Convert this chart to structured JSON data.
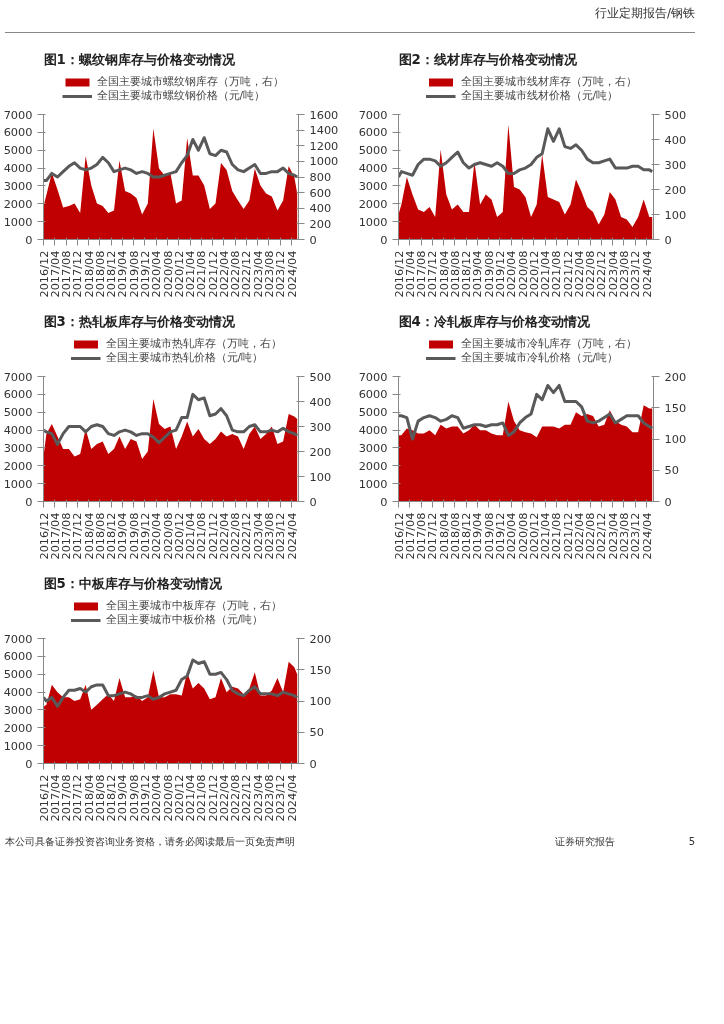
{
  "chart_data": [
    {
      "type": "line",
      "title": "图1：螺纹钢库存与价格变动情况",
      "annotations": [
        "行业定期报告/钢铁",
        "本公司具备证券投资咨询业务资格，请务必阅读最后一页免责声明",
        "证券研究报告",
        "5"
      ],
      "legend": "top",
      "grid": false,
      "xlim": [
        "2016-12",
        "2024-06-15"
      ],
      "ylim": [
        0,
        7000
      ],
      "yticks": [
        0,
        1000,
        2000,
        3000,
        4000,
        5000,
        6000,
        7000
      ],
      "y2lim": [
        0,
        1600
      ],
      "y2ticks": [
        0,
        200,
        400,
        600,
        800,
        1000,
        1200,
        1400,
        1600
      ],
      "xticks": [
        {
          "value": "2016-12",
          "label": "2016/12"
        },
        {
          "value": "2017-04",
          "label": "2017/04"
        },
        {
          "value": "2017-08",
          "label": "2017/08"
        },
        {
          "value": "2017-12",
          "label": "2017/12"
        },
        {
          "value": "2018-04",
          "label": "2018/04"
        },
        {
          "value": "2018-08",
          "label": "2018/08"
        },
        {
          "value": "2018-12",
          "label": "2018/12"
        },
        {
          "value": "2019-04",
          "label": "2019/04"
        },
        {
          "value": "2019-08",
          "label": "2019/08"
        },
        {
          "value": "2019-12",
          "label": "2019/12"
        },
        {
          "value": "2020-04",
          "label": "2020/04"
        },
        {
          "value": "2020-08",
          "label": "2020/08"
        },
        {
          "value": "2020-12",
          "label": "2020/12"
        },
        {
          "value": "2021-04",
          "label": "2021/04"
        },
        {
          "value": "2021-08",
          "label": "2021/08"
        },
        {
          "value": "2021-12",
          "label": "2021/12"
        },
        {
          "value": "2022-04",
          "label": "2022/04"
        },
        {
          "value": "2022-08",
          "label": "2022/08"
        },
        {
          "value": "2022-12",
          "label": "2022/12"
        },
        {
          "value": "2023-04",
          "label": "2023/04"
        },
        {
          "value": "2023-08",
          "label": "2023/08"
        },
        {
          "value": "2023-12",
          "label": "2023/12"
        },
        {
          "value": "2024-04",
          "label": "2024/04"
        }
      ],
      "x": [
        "2016-12",
        "2017-01",
        "2017-03",
        "2017-05",
        "2017-07",
        "2017-09",
        "2017-11",
        "2018-01",
        "2018-03",
        "2018-05",
        "2018-07",
        "2018-09",
        "2018-11",
        "2019-01",
        "2019-03",
        "2019-05",
        "2019-07",
        "2019-09",
        "2019-11",
        "2020-01",
        "2020-03",
        "2020-05",
        "2020-07",
        "2020-09",
        "2020-11",
        "2021-01",
        "2021-03",
        "2021-05",
        "2021-07",
        "2021-09",
        "2021-11",
        "2022-01",
        "2022-03",
        "2022-05",
        "2022-07",
        "2022-09",
        "2022-11",
        "2023-01",
        "2023-03",
        "2023-05",
        "2023-07",
        "2023-09",
        "2023-11",
        "2024-01",
        "2024-03",
        "2024-05",
        "2024-06"
      ],
      "series": [
        {
          "name": "全国主要城市螺纹钢库存（万吨，右）",
          "type": "area",
          "axis": "y2",
          "color": "#c00000",
          "values": [
            430,
            570,
            850,
            640,
            410,
            430,
            460,
            340,
            1070,
            690,
            460,
            430,
            340,
            370,
            1010,
            620,
            590,
            530,
            320,
            460,
            1420,
            910,
            820,
            850,
            460,
            500,
            1300,
            820,
            820,
            690,
            390,
            460,
            980,
            890,
            620,
            500,
            390,
            500,
            910,
            690,
            590,
            550,
            370,
            500,
            940,
            800,
            590
          ]
        },
        {
          "name": "全国主要城市螺纹钢价格（元/吨）",
          "type": "line",
          "color": "#595959",
          "values": [
            3300,
            3300,
            3700,
            3500,
            3800,
            4100,
            4300,
            4000,
            3900,
            4000,
            4200,
            4600,
            4300,
            3800,
            3900,
            4000,
            3900,
            3700,
            3800,
            3700,
            3500,
            3500,
            3600,
            3700,
            3800,
            4300,
            4700,
            5600,
            5000,
            5700,
            4800,
            4700,
            5000,
            4900,
            4200,
            3900,
            3800,
            4000,
            4200,
            3700,
            3700,
            3800,
            3800,
            4000,
            3700,
            3600,
            3500
          ]
        }
      ]
    },
    {
      "type": "line",
      "title": "图2：线材库存与价格变动情况",
      "legend": "top",
      "grid": false,
      "xlim": [
        "2016-12",
        "2024-06-15"
      ],
      "ylim": [
        0,
        7000
      ],
      "yticks": [
        0,
        1000,
        2000,
        3000,
        4000,
        5000,
        6000,
        7000
      ],
      "y2lim": [
        0,
        500
      ],
      "y2ticks": [
        0,
        100,
        200,
        300,
        400,
        500
      ],
      "xticks": [
        {
          "value": "2016-12",
          "label": "2016/12"
        },
        {
          "value": "2017-04",
          "label": "2017/04"
        },
        {
          "value": "2017-08",
          "label": "2017/08"
        },
        {
          "value": "2017-12",
          "label": "2017/12"
        },
        {
          "value": "2018-04",
          "label": "2018/04"
        },
        {
          "value": "2018-08",
          "label": "2018/08"
        },
        {
          "value": "2018-12",
          "label": "2018/12"
        },
        {
          "value": "2019-04",
          "label": "2019/04"
        },
        {
          "value": "2019-08",
          "label": "2019/08"
        },
        {
          "value": "2019-12",
          "label": "2019/12"
        },
        {
          "value": "2020-04",
          "label": "2020/04"
        },
        {
          "value": "2020-08",
          "label": "2020/08"
        },
        {
          "value": "2020-12",
          "label": "2020/12"
        },
        {
          "value": "2021-04",
          "label": "2021/04"
        },
        {
          "value": "2021-08",
          "label": "2021/08"
        },
        {
          "value": "2021-12",
          "label": "2021/12"
        },
        {
          "value": "2022-04",
          "label": "2022/04"
        },
        {
          "value": "2022-08",
          "label": "2022/08"
        },
        {
          "value": "2022-12",
          "label": "2022/12"
        },
        {
          "value": "2023-04",
          "label": "2023/04"
        },
        {
          "value": "2023-08",
          "label": "2023/08"
        },
        {
          "value": "2023-12",
          "label": "2023/12"
        },
        {
          "value": "2024-04",
          "label": "2024/04"
        }
      ],
      "x": [
        "2016-12",
        "2017-01",
        "2017-03",
        "2017-05",
        "2017-07",
        "2017-09",
        "2017-11",
        "2018-01",
        "2018-03",
        "2018-05",
        "2018-07",
        "2018-09",
        "2018-11",
        "2019-01",
        "2019-03",
        "2019-05",
        "2019-07",
        "2019-09",
        "2019-11",
        "2020-01",
        "2020-03",
        "2020-05",
        "2020-07",
        "2020-09",
        "2020-11",
        "2021-01",
        "2021-03",
        "2021-05",
        "2021-07",
        "2021-09",
        "2021-11",
        "2022-01",
        "2022-03",
        "2022-05",
        "2022-07",
        "2022-09",
        "2022-11",
        "2023-01",
        "2023-03",
        "2023-05",
        "2023-07",
        "2023-09",
        "2023-11",
        "2024-01",
        "2024-03",
        "2024-05",
        "2024-06"
      ],
      "series": [
        {
          "name": "全国主要城市线材库存（万吨，右）",
          "type": "area",
          "axis": "y2",
          "color": "#c00000",
          "values": [
            100,
            140,
            250,
            180,
            120,
            110,
            130,
            90,
            360,
            180,
            120,
            140,
            110,
            110,
            310,
            140,
            180,
            160,
            90,
            110,
            460,
            210,
            200,
            170,
            90,
            140,
            340,
            170,
            160,
            150,
            100,
            140,
            240,
            190,
            130,
            110,
            60,
            100,
            190,
            160,
            90,
            80,
            50,
            90,
            160,
            90,
            90
          ]
        },
        {
          "name": "全国主要城市线材价格（元/吨）",
          "type": "line",
          "color": "#595959",
          "values": [
            3500,
            3800,
            3700,
            3600,
            4200,
            4500,
            4500,
            4400,
            4100,
            4300,
            4600,
            4900,
            4300,
            4000,
            4200,
            4300,
            4200,
            4100,
            4300,
            4100,
            3700,
            3700,
            3900,
            4000,
            4200,
            4600,
            4800,
            6200,
            5500,
            6200,
            5200,
            5100,
            5300,
            5000,
            4500,
            4300,
            4300,
            4400,
            4500,
            4000,
            4000,
            4000,
            4100,
            4100,
            3900,
            3900,
            3800
          ]
        }
      ]
    },
    {
      "type": "line",
      "title": "图3：热轧板库存与价格变动情况",
      "legend": "top",
      "grid": false,
      "xlim": [
        "2016-12",
        "2024-06-15"
      ],
      "ylim": [
        0,
        7000
      ],
      "yticks": [
        0,
        1000,
        2000,
        3000,
        4000,
        5000,
        6000,
        7000
      ],
      "y2lim": [
        0,
        500
      ],
      "y2ticks": [
        0,
        100,
        200,
        300,
        400,
        500
      ],
      "xticks": [
        {
          "value": "2016-12",
          "label": "2016/12"
        },
        {
          "value": "2017-04",
          "label": "2017/04"
        },
        {
          "value": "2017-08",
          "label": "2017/08"
        },
        {
          "value": "2017-12",
          "label": "2017/12"
        },
        {
          "value": "2018-04",
          "label": "2018/04"
        },
        {
          "value": "2018-08",
          "label": "2018/08"
        },
        {
          "value": "2018-12",
          "label": "2018/12"
        },
        {
          "value": "2019-04",
          "label": "2019/04"
        },
        {
          "value": "2019-08",
          "label": "2019/08"
        },
        {
          "value": "2019-12",
          "label": "2019/12"
        },
        {
          "value": "2020-04",
          "label": "2020/04"
        },
        {
          "value": "2020-08",
          "label": "2020/08"
        },
        {
          "value": "2020-12",
          "label": "2020/12"
        },
        {
          "value": "2021-04",
          "label": "2021/04"
        },
        {
          "value": "2021-08",
          "label": "2021/08"
        },
        {
          "value": "2021-12",
          "label": "2021/12"
        },
        {
          "value": "2022-04",
          "label": "2022/04"
        },
        {
          "value": "2022-08",
          "label": "2022/08"
        },
        {
          "value": "2022-12",
          "label": "2022/12"
        },
        {
          "value": "2023-04",
          "label": "2023/04"
        },
        {
          "value": "2023-08",
          "label": "2023/08"
        },
        {
          "value": "2023-12",
          "label": "2023/12"
        },
        {
          "value": "2024-04",
          "label": "2024/04"
        }
      ],
      "x": [
        "2016-12",
        "2017-01",
        "2017-03",
        "2017-05",
        "2017-07",
        "2017-09",
        "2017-11",
        "2018-01",
        "2018-03",
        "2018-05",
        "2018-07",
        "2018-09",
        "2018-11",
        "2019-01",
        "2019-03",
        "2019-05",
        "2019-07",
        "2019-09",
        "2019-11",
        "2020-01",
        "2020-03",
        "2020-05",
        "2020-07",
        "2020-09",
        "2020-11",
        "2021-01",
        "2021-03",
        "2021-05",
        "2021-07",
        "2021-09",
        "2021-11",
        "2022-01",
        "2022-03",
        "2022-05",
        "2022-07",
        "2022-09",
        "2022-11",
        "2023-01",
        "2023-03",
        "2023-05",
        "2023-07",
        "2023-09",
        "2023-11",
        "2024-01",
        "2024-03",
        "2024-05",
        "2024-06"
      ],
      "series": [
        {
          "name": "全国主要城市热轧库存（万吨，右）",
          "type": "area",
          "axis": "y2",
          "color": "#c00000",
          "values": [
            180,
            270,
            310,
            260,
            210,
            210,
            180,
            190,
            290,
            210,
            230,
            240,
            190,
            210,
            260,
            210,
            250,
            240,
            170,
            200,
            410,
            310,
            290,
            300,
            210,
            260,
            320,
            260,
            290,
            250,
            230,
            250,
            280,
            260,
            270,
            260,
            210,
            270,
            300,
            250,
            270,
            300,
            230,
            240,
            350,
            340,
            330
          ]
        },
        {
          "name": "全国主要城市热轧价格（元/吨）",
          "type": "line",
          "color": "#595959",
          "values": [
            4000,
            3900,
            3800,
            3200,
            3800,
            4200,
            4200,
            4200,
            3900,
            4200,
            4300,
            4200,
            3800,
            3700,
            3900,
            4000,
            3900,
            3700,
            3800,
            3800,
            3600,
            3300,
            3600,
            3900,
            4000,
            4700,
            4700,
            6000,
            5700,
            5800,
            4800,
            4900,
            5200,
            4800,
            4000,
            3900,
            3900,
            4200,
            4300,
            3900,
            3900,
            4000,
            3900,
            4100,
            3900,
            3800,
            3700
          ]
        }
      ]
    },
    {
      "type": "line",
      "title": "图4：冷轧板库存与价格变动情况",
      "legend": "top",
      "grid": false,
      "xlim": [
        "2016-12",
        "2024-06-15"
      ],
      "ylim": [
        0,
        7000
      ],
      "yticks": [
        0,
        1000,
        2000,
        3000,
        4000,
        5000,
        6000,
        7000
      ],
      "y2lim": [
        0,
        200
      ],
      "y2ticks": [
        0,
        50,
        100,
        150,
        200
      ],
      "xticks": [
        {
          "value": "2016-12",
          "label": "2016/12"
        },
        {
          "value": "2017-04",
          "label": "2017/04"
        },
        {
          "value": "2017-08",
          "label": "2017/08"
        },
        {
          "value": "2017-12",
          "label": "2017/12"
        },
        {
          "value": "2018-04",
          "label": "2018/04"
        },
        {
          "value": "2018-08",
          "label": "2018/08"
        },
        {
          "value": "2018-12",
          "label": "2018/12"
        },
        {
          "value": "2019-04",
          "label": "2019/04"
        },
        {
          "value": "2019-08",
          "label": "2019/08"
        },
        {
          "value": "2019-12",
          "label": "2019/12"
        },
        {
          "value": "2020-04",
          "label": "2020/04"
        },
        {
          "value": "2020-08",
          "label": "2020/08"
        },
        {
          "value": "2020-12",
          "label": "2020/12"
        },
        {
          "value": "2021-04",
          "label": "2021/04"
        },
        {
          "value": "2021-08",
          "label": "2021/08"
        },
        {
          "value": "2021-12",
          "label": "2021/12"
        },
        {
          "value": "2022-04",
          "label": "2022/04"
        },
        {
          "value": "2022-08",
          "label": "2022/08"
        },
        {
          "value": "2022-12",
          "label": "2022/12"
        },
        {
          "value": "2023-04",
          "label": "2023/04"
        },
        {
          "value": "2023-08",
          "label": "2023/08"
        },
        {
          "value": "2023-12",
          "label": "2023/12"
        },
        {
          "value": "2024-04",
          "label": "2024/04"
        }
      ],
      "x": [
        "2016-12",
        "2017-01",
        "2017-03",
        "2017-05",
        "2017-07",
        "2017-09",
        "2017-11",
        "2018-01",
        "2018-03",
        "2018-05",
        "2018-07",
        "2018-09",
        "2018-11",
        "2019-01",
        "2019-03",
        "2019-05",
        "2019-07",
        "2019-09",
        "2019-11",
        "2020-01",
        "2020-03",
        "2020-05",
        "2020-07",
        "2020-09",
        "2020-11",
        "2021-01",
        "2021-03",
        "2021-05",
        "2021-07",
        "2021-09",
        "2021-11",
        "2022-01",
        "2022-03",
        "2022-05",
        "2022-07",
        "2022-09",
        "2022-11",
        "2023-01",
        "2023-03",
        "2023-05",
        "2023-07",
        "2023-09",
        "2023-11",
        "2024-01",
        "2024-03",
        "2024-05",
        "2024-06"
      ],
      "series": [
        {
          "name": "全国主要城市冷轧库存（万吨，右）",
          "type": "area",
          "axis": "y2",
          "color": "#c00000",
          "values": [
            106,
            106,
            117,
            114,
            109,
            109,
            114,
            106,
            123,
            117,
            120,
            120,
            109,
            114,
            123,
            114,
            114,
            109,
            106,
            106,
            160,
            129,
            114,
            111,
            109,
            103,
            120,
            120,
            120,
            117,
            123,
            123,
            143,
            137,
            140,
            137,
            120,
            123,
            146,
            129,
            123,
            120,
            111,
            111,
            154,
            149,
            149
          ]
        },
        {
          "name": "全国主要城市冷轧价格（元/吨）",
          "type": "line",
          "color": "#595959",
          "values": [
            4800,
            4800,
            4700,
            3500,
            4500,
            4700,
            4800,
            4700,
            4500,
            4600,
            4800,
            4700,
            4100,
            4200,
            4300,
            4300,
            4200,
            4300,
            4300,
            4400,
            3700,
            3900,
            4400,
            4700,
            4900,
            6000,
            5700,
            6500,
            6100,
            6500,
            5600,
            5600,
            5600,
            5300,
            4500,
            4400,
            4500,
            4700,
            4900,
            4400,
            4600,
            4800,
            4800,
            4800,
            4400,
            4200,
            4100
          ]
        }
      ]
    },
    {
      "type": "line",
      "title": "图5：中板库存与价格变动情况",
      "legend": "top",
      "grid": false,
      "xlim": [
        "2016-12",
        "2024-06-15"
      ],
      "ylim": [
        0,
        7000
      ],
      "yticks": [
        0,
        1000,
        2000,
        3000,
        4000,
        5000,
        6000,
        7000
      ],
      "y2lim": [
        0,
        200
      ],
      "y2ticks": [
        0,
        50,
        100,
        150,
        200
      ],
      "xticks": [
        {
          "value": "2016-12",
          "label": "2016/12"
        },
        {
          "value": "2017-04",
          "label": "2017/04"
        },
        {
          "value": "2017-08",
          "label": "2017/08"
        },
        {
          "value": "2017-12",
          "label": "2017/12"
        },
        {
          "value": "2018-04",
          "label": "2018/04"
        },
        {
          "value": "2018-08",
          "label": "2018/08"
        },
        {
          "value": "2018-12",
          "label": "2018/12"
        },
        {
          "value": "2019-04",
          "label": "2019/04"
        },
        {
          "value": "2019-08",
          "label": "2019/08"
        },
        {
          "value": "2019-12",
          "label": "2019/12"
        },
        {
          "value": "2020-04",
          "label": "2020/04"
        },
        {
          "value": "2020-08",
          "label": "2020/08"
        },
        {
          "value": "2020-12",
          "label": "2020/12"
        },
        {
          "value": "2021-04",
          "label": "2021/04"
        },
        {
          "value": "2021-08",
          "label": "2021/08"
        },
        {
          "value": "2021-12",
          "label": "2021/12"
        },
        {
          "value": "2022-04",
          "label": "2022/04"
        },
        {
          "value": "2022-08",
          "label": "2022/08"
        },
        {
          "value": "2022-12",
          "label": "2022/12"
        },
        {
          "value": "2023-04",
          "label": "2023/04"
        },
        {
          "value": "2023-08",
          "label": "2023/08"
        },
        {
          "value": "2023-12",
          "label": "2023/12"
        },
        {
          "value": "2024-04",
          "label": "2024/04"
        }
      ],
      "x": [
        "2016-12",
        "2017-01",
        "2017-03",
        "2017-05",
        "2017-07",
        "2017-09",
        "2017-11",
        "2018-01",
        "2018-03",
        "2018-05",
        "2018-07",
        "2018-09",
        "2018-11",
        "2019-01",
        "2019-03",
        "2019-05",
        "2019-07",
        "2019-09",
        "2019-11",
        "2020-01",
        "2020-03",
        "2020-05",
        "2020-07",
        "2020-09",
        "2020-11",
        "2021-01",
        "2021-03",
        "2021-05",
        "2021-07",
        "2021-09",
        "2021-11",
        "2022-01",
        "2022-03",
        "2022-05",
        "2022-07",
        "2022-09",
        "2022-11",
        "2023-01",
        "2023-03",
        "2023-05",
        "2023-07",
        "2023-09",
        "2023-11",
        "2024-01",
        "2024-03",
        "2024-05",
        "2024-06"
      ],
      "series": [
        {
          "name": "全国主要城市中板库存（万吨，右）",
          "type": "area",
          "axis": "y2",
          "color": "#c00000",
          "values": [
            91,
            94,
            126,
            114,
            106,
            106,
            100,
            103,
            126,
            86,
            94,
            103,
            111,
            100,
            137,
            106,
            106,
            109,
            100,
            106,
            149,
            106,
            106,
            111,
            111,
            109,
            146,
            120,
            129,
            120,
            103,
            106,
            137,
            114,
            123,
            120,
            111,
            120,
            146,
            109,
            109,
            117,
            137,
            114,
            163,
            154,
            143
          ]
        },
        {
          "name": "全国主要城市中板价格（元/吨）",
          "type": "line",
          "color": "#595959",
          "values": [
            3700,
            3500,
            3700,
            3200,
            3700,
            4100,
            4100,
            4200,
            4000,
            4300,
            4400,
            4400,
            3800,
            3800,
            3900,
            4000,
            3900,
            3700,
            3700,
            3800,
            3600,
            3700,
            3900,
            4000,
            4100,
            4700,
            4900,
            5800,
            5600,
            5700,
            5000,
            5000,
            5100,
            4700,
            4100,
            3900,
            3800,
            4100,
            4300,
            3900,
            3900,
            3900,
            3800,
            4000,
            3900,
            3800,
            3700
          ]
        }
      ]
    }
  ]
}
